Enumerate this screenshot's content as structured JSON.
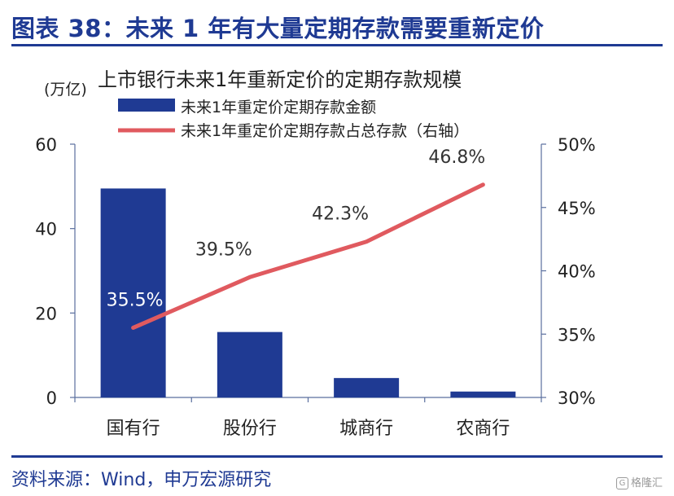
{
  "figure": {
    "title": "图表 38：未来 1 年有大量定期存款需要重新定价",
    "source": "资料来源：Wind，申万宏源研究",
    "watermark": "格隆汇"
  },
  "chart_data": {
    "type": "bar",
    "title": "上市银行未来1年重新定价的定期存款规模",
    "y_unit": "(万亿)",
    "categories": [
      "国有行",
      "股份行",
      "城商行",
      "农商行"
    ],
    "series": [
      {
        "name": "未来1年重定价定期存款金额",
        "type": "bar",
        "axis": "left",
        "values": [
          49.5,
          15.5,
          4.6,
          1.4
        ],
        "color": "#1f3a93"
      },
      {
        "name": "未来1年重定价定期存款占总存款（右轴）",
        "type": "line",
        "axis": "right",
        "values": [
          35.5,
          39.5,
          42.3,
          46.8
        ],
        "labels": [
          "35.5%",
          "39.5%",
          "42.3%",
          "46.8%"
        ],
        "color": "#e05a5f"
      }
    ],
    "y_left": {
      "ylim": [
        0,
        60
      ],
      "ticks": [
        "0",
        "20",
        "40",
        "60"
      ]
    },
    "y_right": {
      "ylim": [
        30,
        50
      ],
      "ticks": [
        "30%",
        "35%",
        "40%",
        "45%",
        "50%"
      ]
    },
    "legend": "top-left",
    "grid": false
  }
}
